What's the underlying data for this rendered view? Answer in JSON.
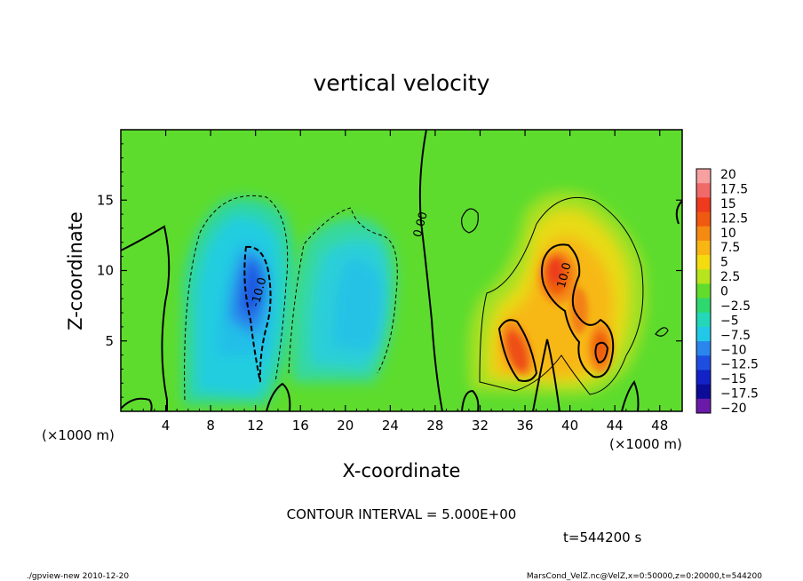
{
  "chart_data": {
    "type": "heatmap",
    "title": "vertical velocity",
    "xlabel": "X-coordinate",
    "ylabel": "Z-coordinate",
    "x_unit": "(×1000 m)",
    "y_unit": "(×1000 m)",
    "xlim": [
      0,
      50
    ],
    "ylim": [
      0,
      20
    ],
    "x_ticks": [
      "4",
      "8",
      "12",
      "16",
      "20",
      "24",
      "28",
      "32",
      "36",
      "40",
      "44",
      "48"
    ],
    "y_ticks": [
      "5",
      "10",
      "15"
    ],
    "x_tick_values": [
      4,
      8,
      12,
      16,
      20,
      24,
      28,
      32,
      36,
      40,
      44,
      48
    ],
    "y_tick_values": [
      5,
      10,
      15
    ],
    "contour_labels": [
      {
        "text": "-10.0",
        "x": 12.6,
        "z": 8.4
      },
      {
        "text": "0.00",
        "x": 27.0,
        "z": 13.2
      },
      {
        "text": "10.0",
        "x": 39.8,
        "z": 9.6
      }
    ],
    "colorbar": {
      "labels": [
        "20",
        "17.5",
        "15",
        "12.5",
        "10",
        "7.5",
        "5",
        "2.5",
        "0",
        "−2.5",
        "−5",
        "−7.5",
        "−10",
        "−12.5",
        "−15",
        "−17.5",
        "−20"
      ],
      "values": [
        20,
        17.5,
        15,
        12.5,
        10,
        7.5,
        5,
        2.5,
        0,
        -2.5,
        -5,
        -7.5,
        -10,
        -12.5,
        -15,
        -17.5,
        -20
      ],
      "colors": [
        "#f7a0a0",
        "#f06a6a",
        "#ee3a1e",
        "#f05a10",
        "#f58a12",
        "#f9b514",
        "#f2dc10",
        "#b8e41e",
        "#62dc2c",
        "#2ed86e",
        "#22d8b8",
        "#22c8e8",
        "#2a86ec",
        "#1e4ee0",
        "#1222c6",
        "#0c0c98",
        "#6a1aa8"
      ]
    },
    "field_features": [
      {
        "sign": "negative",
        "x": 12.2,
        "z": 9.2,
        "peak": -13
      },
      {
        "sign": "negative",
        "x": 21.5,
        "z": 8.0,
        "peak": -6
      },
      {
        "sign": "positive",
        "x": 38.5,
        "z": 9.8,
        "peak": 12
      },
      {
        "sign": "positive",
        "x": 34.5,
        "z": 5.2,
        "peak": 12
      },
      {
        "sign": "positive",
        "x": 42.8,
        "z": 4.6,
        "peak": 11
      }
    ],
    "grid": false
  },
  "annotations": {
    "contour_interval": "CONTOUR INTERVAL = 5.000E+00",
    "time": "t=544200 s",
    "footer_left": "./gpview-new  2010-12-20",
    "footer_right": "MarsCond_VelZ.nc@VelZ,x=0:50000,z=0:20000,t=544200"
  }
}
